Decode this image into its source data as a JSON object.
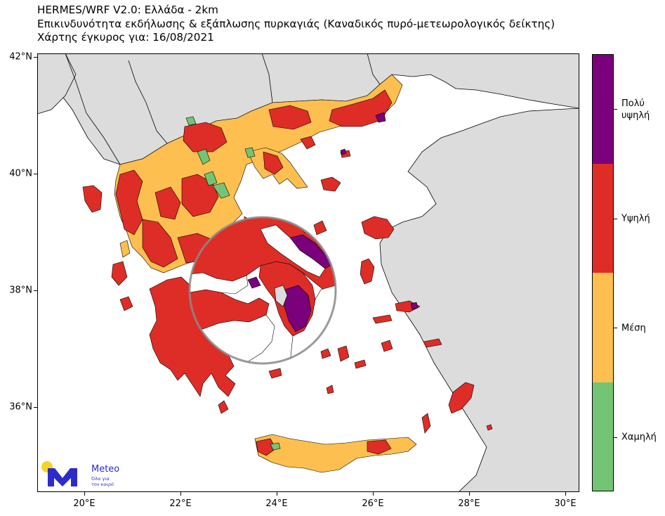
{
  "header": {
    "line1": "HERMES/WRF V2.0: Ελλάδα - 2km",
    "line2": "Επικινδυνότητα εκδήλωσης & εξάπλωσης πυρκαγιάς (Καναδικός πυρό-μετεωρολογικός δείκτης)",
    "line3": "Χάρτης έγκυρος για: 16/08/2021"
  },
  "axes": {
    "lat_ticks": [
      "42°N",
      "40°N",
      "38°N",
      "36°N"
    ],
    "lon_ticks": [
      "20°E",
      "22°E",
      "24°E",
      "26°E",
      "28°E",
      "30°E"
    ],
    "lat_range": [
      34.5,
      42.0
    ],
    "lon_range": [
      19.0,
      30.3
    ]
  },
  "legend": {
    "levels": [
      {
        "label": "Πολύ\nυψηλή",
        "color": "#7b007b"
      },
      {
        "label": "Υψηλή",
        "color": "#de2d26"
      },
      {
        "label": "Μέση",
        "color": "#fdbf4f"
      },
      {
        "label": "Χαμηλή",
        "color": "#74c476"
      }
    ]
  },
  "colors": {
    "sea": "#ffffff",
    "foreign_land": "#dcdcdc",
    "border": "#000000",
    "magnifier_ring": "#8a8a8a"
  },
  "logo": {
    "name": "Meteo",
    "tagline": "Όλα για\nτον καιρό",
    "brand_color": "#2d2bc9",
    "sun_color": "#f5d327"
  }
}
